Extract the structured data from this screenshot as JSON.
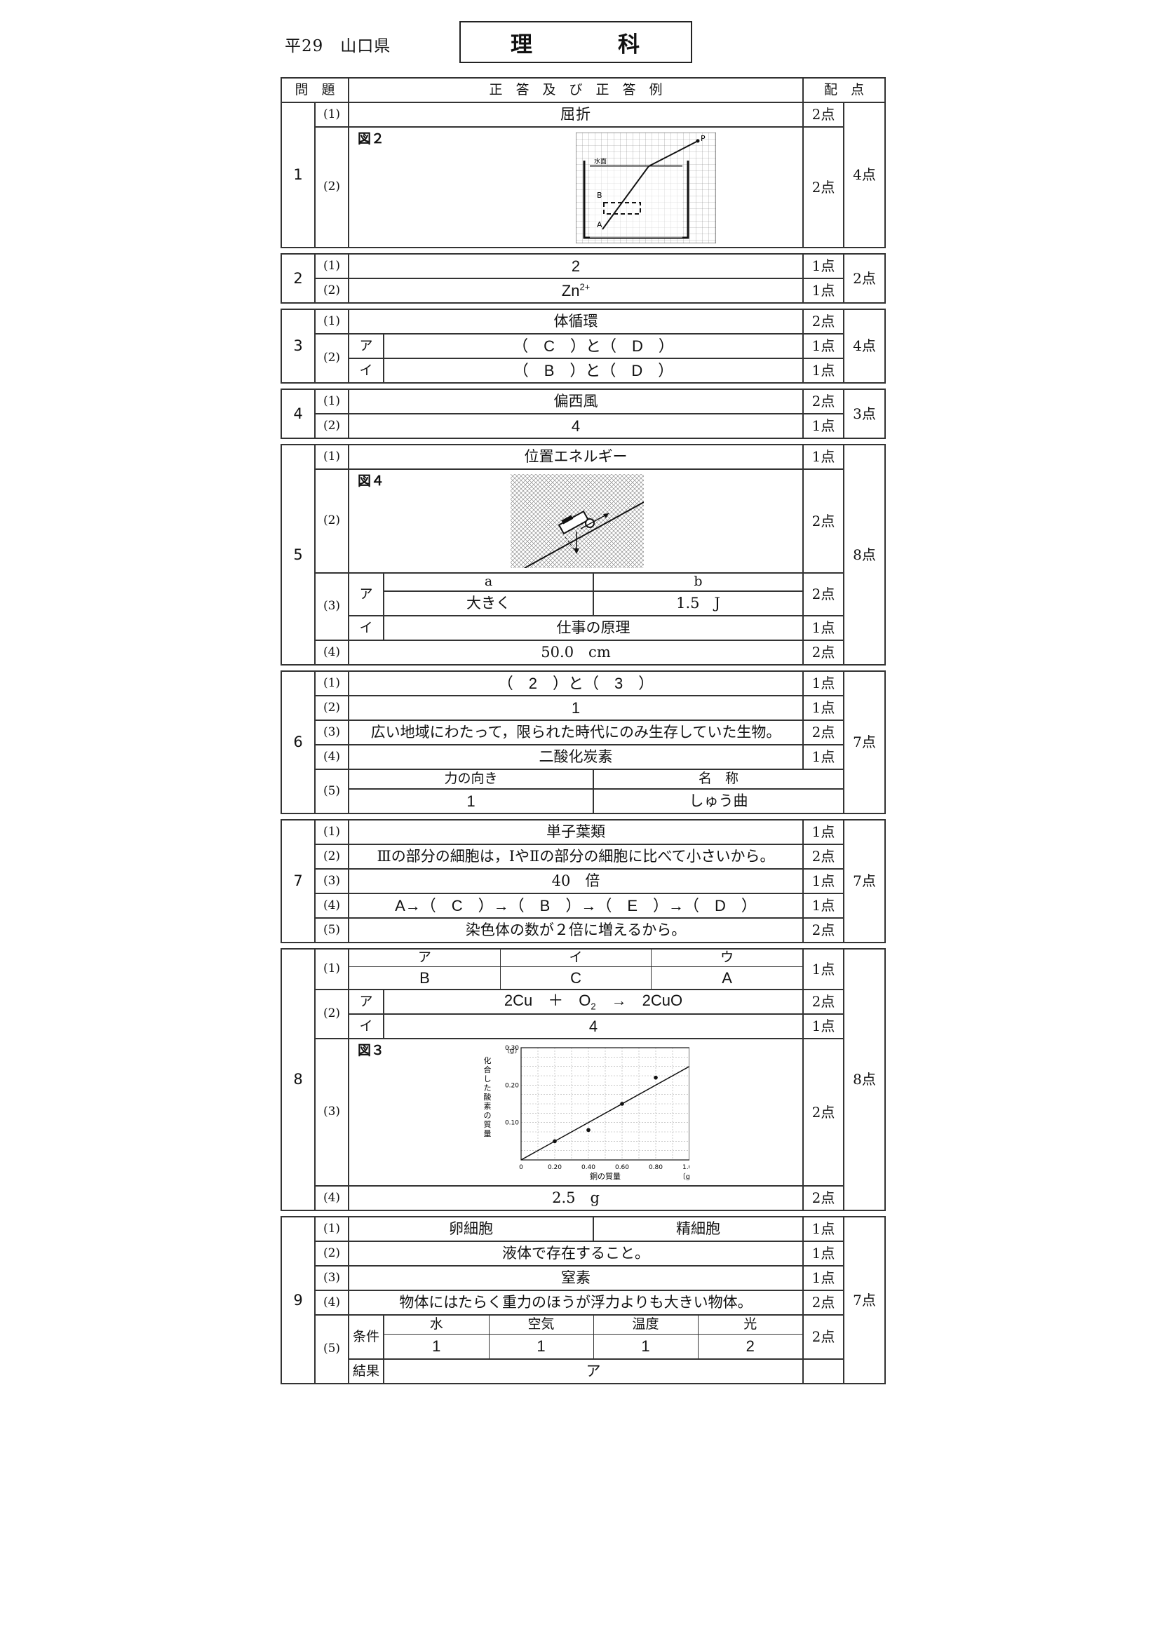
{
  "header": {
    "left": "平29　山口県",
    "title_a": "理",
    "title_b": "科"
  },
  "columns": {
    "q": "問　題",
    "ans": "正　答　及　び　正　答　例",
    "pts": "配　点"
  },
  "subs": {
    "s1": "(1)",
    "s2": "(2)",
    "s3": "(3)",
    "s4": "(4)",
    "s5": "(5)",
    "a": "ア",
    "i": "イ",
    "u": "ウ"
  },
  "q1": {
    "num": "1",
    "a1": "屈折",
    "fig": "図２",
    "p1": "2点",
    "p2": "2点",
    "total": "4点",
    "fig_labels": {
      "surface": "水面",
      "p": "P",
      "b": "B",
      "a": "A"
    }
  },
  "q2": {
    "num": "2",
    "a1": "2",
    "a2_base": "Zn",
    "a2_sup": "2+",
    "p1": "1点",
    "p2": "1点",
    "total": "2点"
  },
  "q3": {
    "num": "3",
    "a1": "体循環",
    "a2a": "（　C　）と（　D　）",
    "a2i": "（　B　）と（　D　）",
    "p1": "2点",
    "p2a": "1点",
    "p2i": "1点",
    "total": "4点"
  },
  "q4": {
    "num": "4",
    "a1": "偏西風",
    "a2": "4",
    "p1": "2点",
    "p2": "1点",
    "total": "3点"
  },
  "q5": {
    "num": "5",
    "a1": "位置エネルギー",
    "fig": "図４",
    "a_head": "a",
    "b_head": "b",
    "a_val": "大きく",
    "b_val": "1.5　J",
    "a3i": "仕事の原理",
    "a4": "50.0　cm",
    "p1": "1点",
    "p2": "2点",
    "p3a": "2点",
    "p3i": "1点",
    "p4": "2点",
    "total": "8点"
  },
  "q6": {
    "num": "6",
    "a1": "（　2　）と（　3　）",
    "a2": "1",
    "a3": "広い地域にわたって，限られた時代にのみ生存していた生物。",
    "a4": "二酸化炭素",
    "h_force": "力の向き",
    "h_name": "名　称",
    "v_force": "1",
    "v_name": "しゅう曲",
    "p1": "1点",
    "p2": "1点",
    "p3": "2点",
    "p4": "1点",
    "p5": "2点",
    "total": "7点"
  },
  "q7": {
    "num": "7",
    "a1": "単子葉類",
    "a2": "Ⅲの部分の細胞は，ⅠやⅡの部分の細胞に比べて小さいから。",
    "a3": "40　倍",
    "a4": "A→（　C　）→（　B　）→（　E　）→（　D　）",
    "a5": "染色体の数が２倍に増えるから。",
    "p1": "1点",
    "p2": "2点",
    "p3": "1点",
    "p4": "1点",
    "p5": "2点",
    "total": "7点"
  },
  "q8": {
    "num": "8",
    "h_a": "ア",
    "h_i": "イ",
    "h_u": "ウ",
    "v_a": "B",
    "v_i": "C",
    "v_u": "A",
    "eq_l": "2Cu　＋　O",
    "eq_sub": "2",
    "eq_r": "　→　2CuO",
    "a2i": "4",
    "fig": "図３",
    "a4": "2.5　g",
    "p1": "1点",
    "p2a": "2点",
    "p2i": "1点",
    "p3": "2点",
    "p4": "2点",
    "total": "8点"
  },
  "q9": {
    "num": "9",
    "egg": "卵細胞",
    "sperm": "精細胞",
    "a2": "液体で存在すること。",
    "a3": "窒素",
    "a4": "物体にはたらく重力のほうが浮力よりも大きい物体。",
    "cond": "条件",
    "result": "結果",
    "h_water": "水",
    "h_air": "空気",
    "h_temp": "温度",
    "h_light": "光",
    "v_water": "1",
    "v_air": "1",
    "v_temp": "1",
    "v_light": "2",
    "v_result": "ア",
    "p1": "1点",
    "p2": "1点",
    "p3": "1点",
    "p4": "2点",
    "p5": "2点",
    "total": "7点"
  },
  "chart_data": {
    "type": "scatter",
    "title": "",
    "ylabel": "化合した酸素の質量",
    "y_unit": "〔g〕",
    "xlabel": "銅の質量",
    "x_unit": "〔g〕",
    "xlim": [
      0,
      1.0
    ],
    "ylim": [
      0,
      0.3
    ],
    "x_ticks": [
      "0",
      "0.20",
      "0.40",
      "0.60",
      "0.80",
      "1.00"
    ],
    "y_ticks": [
      "0.10",
      "0.20",
      "0.30"
    ],
    "x": [
      0.2,
      0.4,
      0.6,
      0.8
    ],
    "y": [
      0.05,
      0.08,
      0.15,
      0.22
    ],
    "fit_line": {
      "x": [
        0,
        1.0
      ],
      "y": [
        0,
        0.25
      ]
    },
    "grid": true
  }
}
